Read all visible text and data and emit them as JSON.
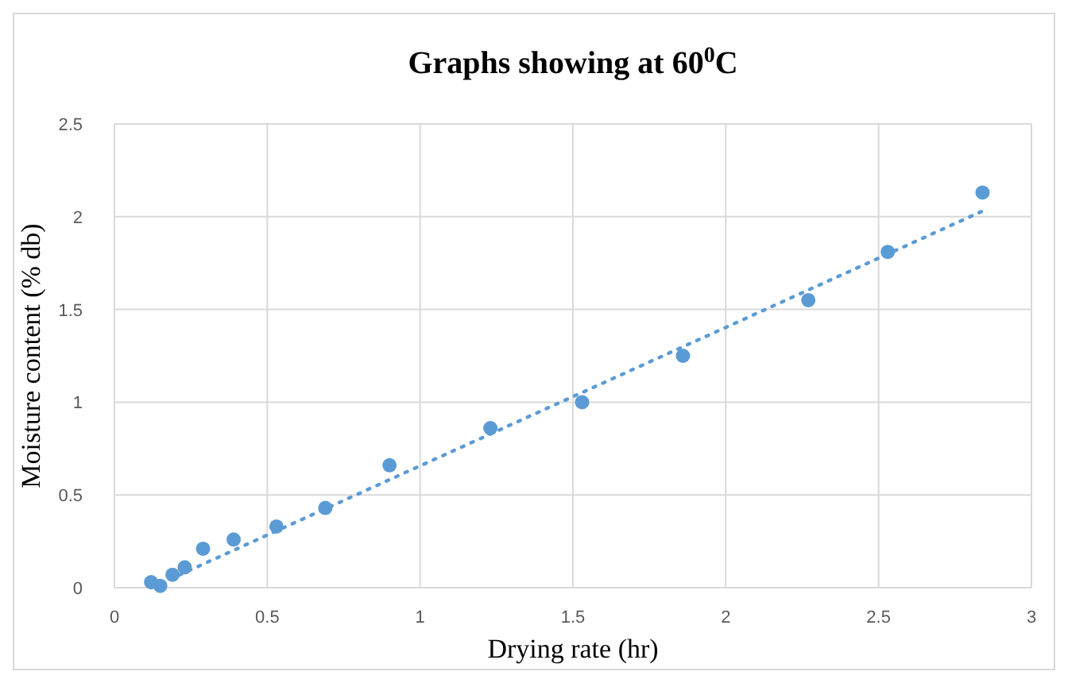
{
  "chart_data": {
    "type": "scatter",
    "title": "Graphs showing at 60$^{0}$C",
    "xlabel": "Drying rate (hr)",
    "ylabel": "Moisture content (% db)",
    "xlim": [
      0,
      3
    ],
    "xticks": [
      0,
      0.5,
      1,
      1.5,
      2,
      2.5,
      3
    ],
    "ylim": [
      0,
      2.5
    ],
    "yticks": [
      0,
      0.5,
      1,
      1.5,
      2,
      2.5
    ],
    "grid": true,
    "marker": "circle",
    "series": [
      {
        "color": "#5b9bd5",
        "x": [
          0.12,
          0.15,
          0.19,
          0.23,
          0.29,
          0.39,
          0.53,
          0.69,
          0.9,
          1.23,
          1.53,
          1.86,
          2.27,
          2.53,
          2.84
        ],
        "values": [
          0.03,
          0.01,
          0.07,
          0.11,
          0.21,
          0.26,
          0.33,
          0.43,
          0.66,
          0.86,
          1.0,
          1.25,
          1.55,
          1.81,
          2.13
        ]
      },
      {
        "type": "line",
        "color": "#5b9bd5",
        "line_style": "dotted",
        "marker": "none",
        "x": [
          0.12,
          2.84
        ],
        "values": [
          0.0,
          2.03
        ]
      }
    ]
  }
}
